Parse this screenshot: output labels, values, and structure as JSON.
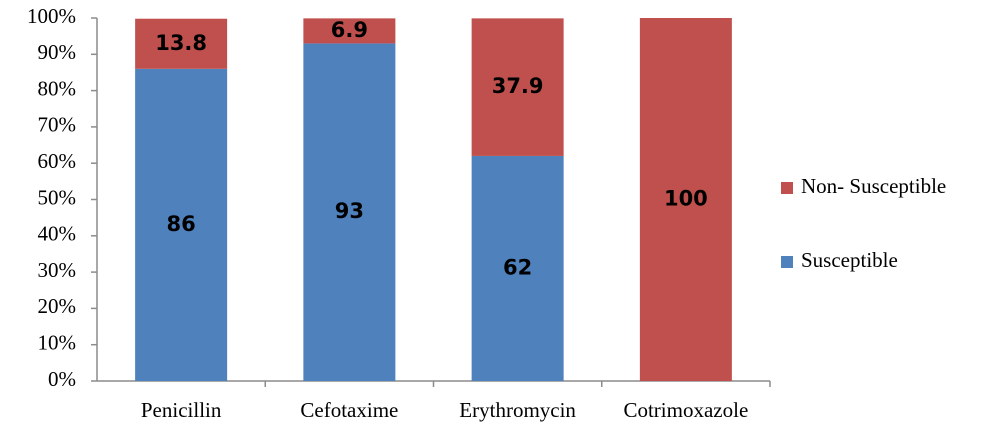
{
  "chart_data": {
    "type": "stacked_bar",
    "categories": [
      "Penicillin",
      "Cefotaxime",
      "Erythromycin",
      "Cotrimoxazole"
    ],
    "series": [
      {
        "name": "Susceptible",
        "color": "#4f81bd",
        "values": [
          86,
          93,
          62,
          0
        ]
      },
      {
        "name": "Non- Susceptible",
        "color": "#c0504d",
        "values": [
          13.8,
          6.9,
          37.9,
          100
        ]
      }
    ],
    "ylim": [
      0,
      100
    ],
    "yticks": [
      {
        "value": 0,
        "label": "0%"
      },
      {
        "value": 10,
        "label": "10%"
      },
      {
        "value": 20,
        "label": "20%"
      },
      {
        "value": 30,
        "label": "30%"
      },
      {
        "value": 40,
        "label": "40%"
      },
      {
        "value": 50,
        "label": "50%"
      },
      {
        "value": 60,
        "label": "60%"
      },
      {
        "value": 70,
        "label": "70%"
      },
      {
        "value": 80,
        "label": "80%"
      },
      {
        "value": 90,
        "label": "90%"
      },
      {
        "value": 100,
        "label": "100%"
      }
    ],
    "legend": "right",
    "grid": false
  }
}
